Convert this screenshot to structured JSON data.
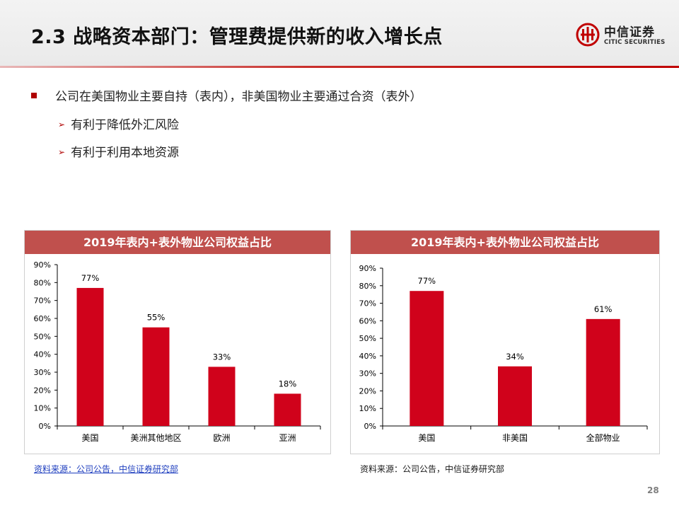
{
  "header": {
    "title": "2.3 战略资本部门：管理费提供新的收入增长点",
    "logo_cn": "中信证券",
    "logo_en": "CITIC SECURITIES",
    "accent": "#c00000"
  },
  "bullets": {
    "main": "公司在美国物业主要自持（表内），非美国物业主要通过合资（表外）",
    "sub": [
      "有利于降低外汇风险",
      "有利于利用本地资源"
    ]
  },
  "charts": [
    {
      "title": "2019年表内+表外物业公司权益占比",
      "source": "资料来源：公司公告，中信证券研究部"
    },
    {
      "title": "2019年表内+表外物业公司权益占比",
      "source": "资料来源：公司公告，中信证券研究部"
    }
  ],
  "chart_data": [
    {
      "type": "bar",
      "title": "2019年表内+表外物业公司权益占比",
      "categories": [
        "美国",
        "美洲其他地区",
        "欧洲",
        "亚洲"
      ],
      "values": [
        0.77,
        0.55,
        0.33,
        0.18
      ],
      "value_labels": [
        "77%",
        "55%",
        "33%",
        "18%"
      ],
      "yticks": [
        "0%",
        "10%",
        "20%",
        "30%",
        "40%",
        "50%",
        "60%",
        "70%",
        "80%",
        "90%"
      ],
      "ylim": [
        0,
        0.9
      ],
      "color": "#d0021b",
      "grid": false
    },
    {
      "type": "bar",
      "title": "2019年表内+表外物业公司权益占比",
      "categories": [
        "美国",
        "非美国",
        "全部物业"
      ],
      "values": [
        0.77,
        0.34,
        0.61
      ],
      "value_labels": [
        "77%",
        "34%",
        "61%"
      ],
      "yticks": [
        "0%",
        "10%",
        "20%",
        "30%",
        "40%",
        "50%",
        "60%",
        "70%",
        "80%",
        "90%"
      ],
      "ylim": [
        0,
        0.9
      ],
      "color": "#d0021b",
      "grid": false
    }
  ],
  "page_number": "28"
}
